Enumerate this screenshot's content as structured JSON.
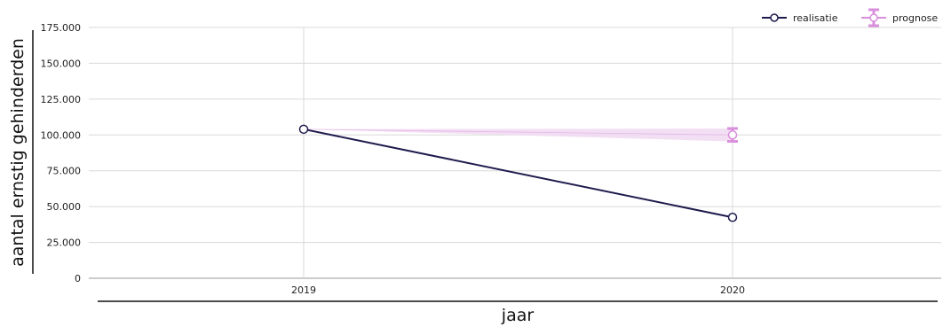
{
  "chart_data": {
    "type": "line",
    "xlabel": "jaar",
    "ylabel": "aantal ernstig gehinderden",
    "categories": [
      "2019",
      "2020"
    ],
    "ylim": [
      0,
      175000
    ],
    "yticks": [
      0,
      25000,
      50000,
      75000,
      100000,
      125000,
      150000,
      175000
    ],
    "ytick_labels": [
      "0",
      "25.000",
      "50.000",
      "75.000",
      "100.000",
      "125.000",
      "150.000",
      "175.000"
    ],
    "grid": true,
    "legend_position": "top-right",
    "series": [
      {
        "name": "realisatie",
        "color": "#1f1b4d",
        "values": [
          104000,
          42500
        ]
      },
      {
        "name": "prognose",
        "color": "#d98fdc",
        "band_color": "#f2dcf3",
        "values": [
          null,
          100000
        ],
        "error_low": [
          null,
          95500
        ],
        "error_high": [
          null,
          104500
        ],
        "band_start_value": 104000
      }
    ]
  }
}
